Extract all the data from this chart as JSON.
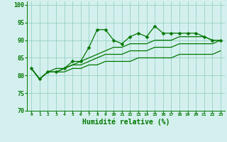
{
  "title": "",
  "xlabel": "Humidité relative (%)",
  "ylabel": "",
  "xlim": [
    -0.5,
    23.5
  ],
  "ylim": [
    70,
    101
  ],
  "yticks": [
    70,
    75,
    80,
    85,
    90,
    95,
    100
  ],
  "xticks": [
    0,
    1,
    2,
    3,
    4,
    5,
    6,
    7,
    8,
    9,
    10,
    11,
    12,
    13,
    14,
    15,
    16,
    17,
    18,
    19,
    20,
    21,
    22,
    23
  ],
  "background_color": "#d4f0ee",
  "grid_color": "#88ccbb",
  "line_color": "#007700",
  "series": [
    [
      82,
      79,
      81,
      81,
      82,
      84,
      84,
      88,
      93,
      93,
      90,
      89,
      91,
      92,
      91,
      94,
      92,
      92,
      92,
      92,
      92,
      91,
      90,
      90
    ],
    [
      82,
      79,
      81,
      82,
      82,
      83,
      84,
      85,
      86,
      87,
      88,
      88,
      89,
      89,
      89,
      90,
      90,
      90,
      91,
      91,
      91,
      91,
      90,
      90
    ],
    [
      82,
      79,
      81,
      81,
      82,
      83,
      83,
      84,
      85,
      86,
      86,
      86,
      87,
      87,
      87,
      88,
      88,
      88,
      89,
      89,
      89,
      89,
      89,
      90
    ],
    [
      82,
      79,
      81,
      81,
      81,
      82,
      82,
      83,
      83,
      84,
      84,
      84,
      84,
      85,
      85,
      85,
      85,
      85,
      86,
      86,
      86,
      86,
      86,
      87
    ]
  ],
  "marker": "D",
  "markersize": 2.5,
  "linewidth": 0.9,
  "figsize": [
    3.2,
    2.0
  ],
  "dpi": 100,
  "xtick_fontsize": 4.5,
  "ytick_fontsize": 6.0,
  "xlabel_fontsize": 7.0
}
